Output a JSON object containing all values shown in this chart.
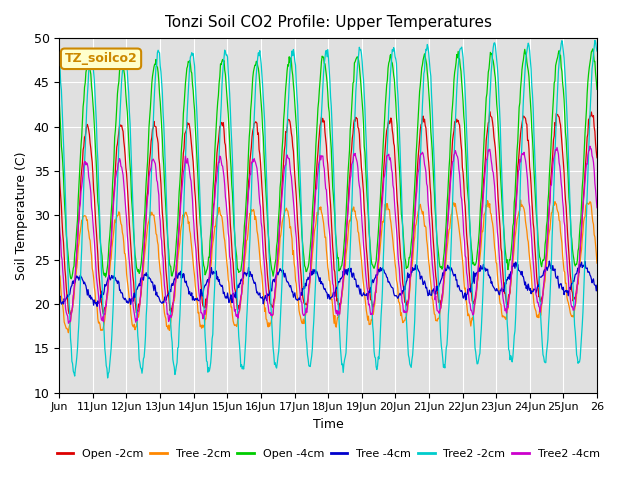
{
  "title": "Tonzi Soil CO2 Profile: Upper Temperatures",
  "xlabel": "Time",
  "ylabel": "Soil Temperature (C)",
  "ylim": [
    10,
    50
  ],
  "background_color": "#e8e8e8",
  "plot_bg_color": "#e0e0e0",
  "grid_color": "white",
  "label_box_text": "TZ_soilco2",
  "label_box_bg": "#ffffcc",
  "label_box_border": "#cc8800",
  "series": [
    {
      "label": "Open -2cm",
      "color": "#dd0000",
      "mid": 29.5,
      "amp": 10.5,
      "phase": 0.0
    },
    {
      "label": "Tree -2cm",
      "color": "#ff8800",
      "mid": 23.5,
      "amp": 6.5,
      "phase": 0.08
    },
    {
      "label": "Open -4cm",
      "color": "#00cc00",
      "mid": 35.0,
      "amp": 12.0,
      "phase": -0.03
    },
    {
      "label": "Tree -4cm",
      "color": "#0000cc",
      "mid": 21.5,
      "amp": 1.5,
      "phase": 0.25
    },
    {
      "label": "Tree2 -2cm",
      "color": "#00cccc",
      "mid": 30.0,
      "amp": 18.0,
      "phase": -0.12
    },
    {
      "label": "Tree2 -4cm",
      "color": "#cc00cc",
      "mid": 27.0,
      "amp": 9.0,
      "phase": 0.04
    }
  ],
  "xtick_labels": [
    "Jun",
    "11Jun",
    "12Jun",
    "13Jun",
    "14Jun",
    "15Jun",
    "16Jun",
    "17Jun",
    "18Jun",
    "19Jun",
    "20Jun",
    "21Jun",
    "22Jun",
    "23Jun",
    "24Jun",
    "25Jun",
    "26"
  ],
  "ytick_values": [
    10,
    15,
    20,
    25,
    30,
    35,
    40,
    45,
    50
  ]
}
